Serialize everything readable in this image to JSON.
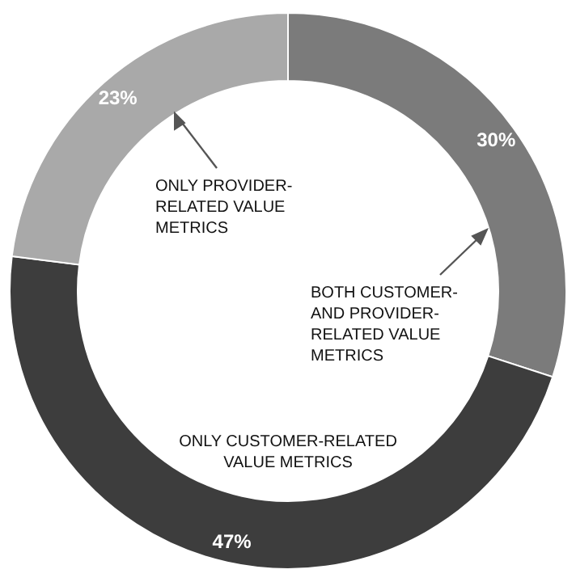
{
  "chart_data": {
    "type": "donut",
    "categories": [
      "BOTH CUSTOMER- AND PROVIDER-RELATED VALUE METRICS",
      "ONLY CUSTOMER-RELATED VALUE METRICS",
      "ONLY PROVIDER-RELATED VALUE METRICS"
    ],
    "values": [
      30,
      47,
      23
    ],
    "colors": [
      "#7b7b7b",
      "#3d3d3d",
      "#a9a9a9"
    ],
    "value_labels": [
      "30%",
      "47%",
      "23%"
    ]
  }
}
